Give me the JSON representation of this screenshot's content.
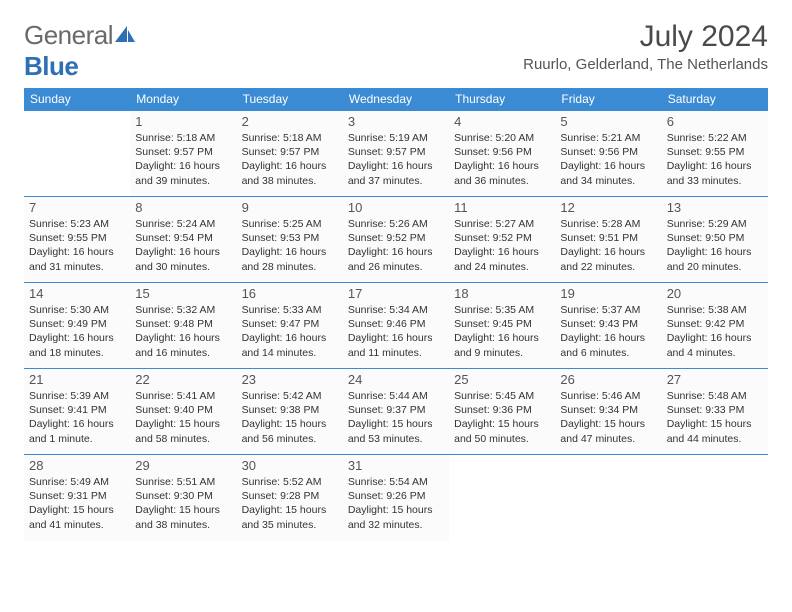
{
  "brand": {
    "name_a": "General",
    "name_b": "Blue",
    "accent": "#2f6fb3"
  },
  "header": {
    "title": "July 2024",
    "location": "Ruurlo, Gelderland, The Netherlands"
  },
  "theme": {
    "header_bg": "#3b8bd4",
    "header_fg": "#ffffff",
    "cell_border": "#3b8bd4",
    "text": "#333333",
    "muted": "#555555",
    "page_bg": "#ffffff"
  },
  "calendar": {
    "columns": [
      "Sunday",
      "Monday",
      "Tuesday",
      "Wednesday",
      "Thursday",
      "Friday",
      "Saturday"
    ],
    "first_weekday_index": 1,
    "days": [
      {
        "n": 1,
        "sunrise": "5:18 AM",
        "sunset": "9:57 PM",
        "daylight": "16 hours and 39 minutes."
      },
      {
        "n": 2,
        "sunrise": "5:18 AM",
        "sunset": "9:57 PM",
        "daylight": "16 hours and 38 minutes."
      },
      {
        "n": 3,
        "sunrise": "5:19 AM",
        "sunset": "9:57 PM",
        "daylight": "16 hours and 37 minutes."
      },
      {
        "n": 4,
        "sunrise": "5:20 AM",
        "sunset": "9:56 PM",
        "daylight": "16 hours and 36 minutes."
      },
      {
        "n": 5,
        "sunrise": "5:21 AM",
        "sunset": "9:56 PM",
        "daylight": "16 hours and 34 minutes."
      },
      {
        "n": 6,
        "sunrise": "5:22 AM",
        "sunset": "9:55 PM",
        "daylight": "16 hours and 33 minutes."
      },
      {
        "n": 7,
        "sunrise": "5:23 AM",
        "sunset": "9:55 PM",
        "daylight": "16 hours and 31 minutes."
      },
      {
        "n": 8,
        "sunrise": "5:24 AM",
        "sunset": "9:54 PM",
        "daylight": "16 hours and 30 minutes."
      },
      {
        "n": 9,
        "sunrise": "5:25 AM",
        "sunset": "9:53 PM",
        "daylight": "16 hours and 28 minutes."
      },
      {
        "n": 10,
        "sunrise": "5:26 AM",
        "sunset": "9:52 PM",
        "daylight": "16 hours and 26 minutes."
      },
      {
        "n": 11,
        "sunrise": "5:27 AM",
        "sunset": "9:52 PM",
        "daylight": "16 hours and 24 minutes."
      },
      {
        "n": 12,
        "sunrise": "5:28 AM",
        "sunset": "9:51 PM",
        "daylight": "16 hours and 22 minutes."
      },
      {
        "n": 13,
        "sunrise": "5:29 AM",
        "sunset": "9:50 PM",
        "daylight": "16 hours and 20 minutes."
      },
      {
        "n": 14,
        "sunrise": "5:30 AM",
        "sunset": "9:49 PM",
        "daylight": "16 hours and 18 minutes."
      },
      {
        "n": 15,
        "sunrise": "5:32 AM",
        "sunset": "9:48 PM",
        "daylight": "16 hours and 16 minutes."
      },
      {
        "n": 16,
        "sunrise": "5:33 AM",
        "sunset": "9:47 PM",
        "daylight": "16 hours and 14 minutes."
      },
      {
        "n": 17,
        "sunrise": "5:34 AM",
        "sunset": "9:46 PM",
        "daylight": "16 hours and 11 minutes."
      },
      {
        "n": 18,
        "sunrise": "5:35 AM",
        "sunset": "9:45 PM",
        "daylight": "16 hours and 9 minutes."
      },
      {
        "n": 19,
        "sunrise": "5:37 AM",
        "sunset": "9:43 PM",
        "daylight": "16 hours and 6 minutes."
      },
      {
        "n": 20,
        "sunrise": "5:38 AM",
        "sunset": "9:42 PM",
        "daylight": "16 hours and 4 minutes."
      },
      {
        "n": 21,
        "sunrise": "5:39 AM",
        "sunset": "9:41 PM",
        "daylight": "16 hours and 1 minute."
      },
      {
        "n": 22,
        "sunrise": "5:41 AM",
        "sunset": "9:40 PM",
        "daylight": "15 hours and 58 minutes."
      },
      {
        "n": 23,
        "sunrise": "5:42 AM",
        "sunset": "9:38 PM",
        "daylight": "15 hours and 56 minutes."
      },
      {
        "n": 24,
        "sunrise": "5:44 AM",
        "sunset": "9:37 PM",
        "daylight": "15 hours and 53 minutes."
      },
      {
        "n": 25,
        "sunrise": "5:45 AM",
        "sunset": "9:36 PM",
        "daylight": "15 hours and 50 minutes."
      },
      {
        "n": 26,
        "sunrise": "5:46 AM",
        "sunset": "9:34 PM",
        "daylight": "15 hours and 47 minutes."
      },
      {
        "n": 27,
        "sunrise": "5:48 AM",
        "sunset": "9:33 PM",
        "daylight": "15 hours and 44 minutes."
      },
      {
        "n": 28,
        "sunrise": "5:49 AM",
        "sunset": "9:31 PM",
        "daylight": "15 hours and 41 minutes."
      },
      {
        "n": 29,
        "sunrise": "5:51 AM",
        "sunset": "9:30 PM",
        "daylight": "15 hours and 38 minutes."
      },
      {
        "n": 30,
        "sunrise": "5:52 AM",
        "sunset": "9:28 PM",
        "daylight": "15 hours and 35 minutes."
      },
      {
        "n": 31,
        "sunrise": "5:54 AM",
        "sunset": "9:26 PM",
        "daylight": "15 hours and 32 minutes."
      }
    ],
    "labels": {
      "sunrise": "Sunrise:",
      "sunset": "Sunset:",
      "daylight": "Daylight:"
    }
  }
}
